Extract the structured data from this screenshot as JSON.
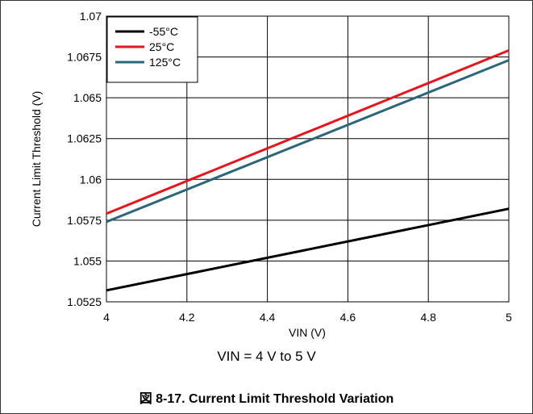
{
  "chart_data": {
    "type": "line",
    "xlabel": "VIN (V)",
    "ylabel": "Current Limit Threshold (V)",
    "xlim": [
      4,
      5
    ],
    "ylim": [
      1.0525,
      1.07
    ],
    "x_ticks": [
      "4",
      "4.2",
      "4.4",
      "4.6",
      "4.8",
      "5"
    ],
    "y_ticks": [
      "1.0525",
      "1.055",
      "1.0575",
      "1.06",
      "1.0625",
      "1.065",
      "1.0675",
      "1.07"
    ],
    "grid": true,
    "legend_position": "top-left",
    "series": [
      {
        "name": "-55°C",
        "color": "#000000",
        "x": [
          4,
          5
        ],
        "y": [
          1.0532,
          1.0582
        ]
      },
      {
        "name": "25°C",
        "color": "#e8141c",
        "x": [
          4,
          5
        ],
        "y": [
          1.0579,
          1.0679
        ]
      },
      {
        "name": "125°C",
        "color": "#2b6778",
        "x": [
          4,
          5
        ],
        "y": [
          1.0574,
          1.0673
        ]
      }
    ]
  },
  "condition_text": "VIN = 4 V to 5 V",
  "caption": "図 8-17. Current Limit Threshold Variation"
}
